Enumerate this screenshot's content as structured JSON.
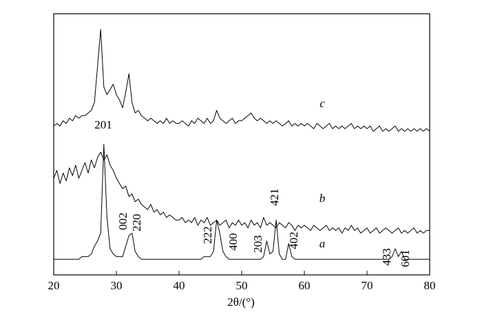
{
  "chart_data": {
    "type": "line",
    "xlabel": "2θ/(°)",
    "xlim": [
      20,
      80
    ],
    "xticks": [
      20,
      30,
      40,
      50,
      60,
      70,
      80
    ],
    "ylim": [
      0,
      100
    ],
    "color": "#000000",
    "x": [
      20,
      20.5,
      21,
      21.5,
      22,
      22.5,
      23,
      23.5,
      24,
      24.5,
      25,
      25.5,
      26,
      26.5,
      27,
      27.5,
      28,
      28.5,
      29,
      29.5,
      30,
      30.5,
      31,
      31.5,
      32,
      32.5,
      33,
      33.5,
      34,
      34.5,
      35,
      35.5,
      36,
      36.5,
      37,
      37.5,
      38,
      38.5,
      39,
      39.5,
      40,
      40.5,
      41,
      41.5,
      42,
      42.5,
      43,
      43.5,
      44,
      44.5,
      45,
      45.5,
      46,
      46.5,
      47,
      47.5,
      48,
      48.5,
      49,
      49.5,
      50,
      50.5,
      51,
      51.5,
      52,
      52.5,
      53,
      53.5,
      54,
      54.5,
      55,
      55.5,
      56,
      56.5,
      57,
      57.5,
      58,
      58.5,
      59,
      59.5,
      60,
      60.5,
      61,
      61.5,
      62,
      62.5,
      63,
      63.5,
      64,
      64.5,
      65,
      65.5,
      66,
      66.5,
      67,
      67.5,
      68,
      68.5,
      69,
      69.5,
      70,
      70.5,
      71,
      71.5,
      72,
      72.5,
      73,
      73.5,
      74,
      74.5,
      75,
      75.5,
      76,
      76.5,
      77,
      77.5,
      78,
      78.5,
      79,
      79.5,
      80
    ],
    "series": [
      {
        "name": "a",
        "values": [
          6,
          6,
          6,
          6,
          6,
          6,
          6,
          6,
          6,
          7,
          7,
          7,
          8,
          11,
          13,
          16,
          50,
          22,
          10,
          8,
          7,
          7,
          7,
          11,
          15,
          16,
          9,
          7,
          6,
          6,
          6,
          6,
          6,
          6,
          6,
          6,
          6,
          6,
          6,
          6,
          6,
          6,
          6,
          6,
          6,
          6,
          6,
          6,
          7,
          7,
          7,
          9,
          21,
          16,
          9,
          7,
          6,
          6,
          6,
          6,
          6,
          6,
          6,
          6,
          6,
          6,
          6,
          7,
          13,
          8,
          9,
          21,
          8,
          6,
          6,
          12,
          7,
          6,
          6,
          6,
          6,
          6,
          6,
          6,
          6,
          6,
          6,
          6,
          6,
          6,
          6,
          6,
          6,
          6,
          6,
          6,
          6,
          6,
          6,
          6,
          6,
          6,
          6,
          6,
          6,
          6,
          6,
          6,
          7,
          10,
          7,
          9,
          6,
          6,
          6,
          6,
          6,
          6,
          6,
          6,
          6
        ]
      },
      {
        "name": "b",
        "values": [
          37,
          40,
          35,
          39,
          36,
          41,
          38,
          42,
          37,
          40,
          43,
          39,
          44,
          41,
          45,
          47,
          44,
          46,
          42,
          40,
          37,
          35,
          33,
          34,
          30,
          31,
          28,
          29,
          27,
          26,
          25,
          27,
          24,
          25,
          23,
          24,
          22,
          23,
          22,
          21,
          21,
          22,
          20,
          21,
          20,
          22,
          19,
          21,
          20,
          22,
          19,
          20,
          21,
          19,
          20,
          21,
          18,
          20,
          19,
          21,
          19,
          20,
          18,
          21,
          19,
          20,
          18,
          22,
          19,
          20,
          19,
          18,
          20,
          19,
          18,
          20,
          19,
          17,
          19,
          18,
          19,
          18,
          17,
          19,
          18,
          17,
          18,
          19,
          17,
          18,
          17,
          18,
          16,
          18,
          17,
          19,
          17,
          18,
          16,
          17,
          18,
          16,
          17,
          18,
          16,
          17,
          18,
          17,
          16,
          17,
          18,
          16,
          17,
          16,
          17,
          18,
          16,
          17,
          16,
          17,
          17
        ]
      },
      {
        "name": "c",
        "values": [
          57,
          58,
          57,
          59,
          58,
          60,
          59,
          61,
          60,
          61,
          61,
          62,
          63,
          66,
          80,
          94,
          72,
          69,
          71,
          73,
          69,
          67,
          64,
          70,
          77,
          66,
          62,
          63,
          61,
          60,
          59,
          60,
          59,
          58,
          59,
          58,
          60,
          58,
          59,
          58,
          58,
          59,
          58,
          57,
          59,
          58,
          60,
          59,
          58,
          60,
          58,
          59,
          63,
          60,
          59,
          58,
          59,
          60,
          58,
          59,
          59,
          60,
          61,
          62,
          60,
          59,
          60,
          59,
          58,
          59,
          58,
          59,
          58,
          57,
          58,
          59,
          57,
          58,
          57,
          58,
          57,
          58,
          57,
          56,
          58,
          57,
          56,
          57,
          58,
          56,
          57,
          56,
          57,
          56,
          57,
          58,
          56,
          57,
          56,
          57,
          56,
          57,
          55,
          56,
          57,
          55,
          56,
          55,
          56,
          57,
          55,
          56,
          55,
          56,
          55,
          56,
          55,
          56,
          55,
          56,
          55
        ]
      }
    ],
    "annotations": [
      "201",
      "002",
      "220",
      "222",
      "400",
      "203",
      "421",
      "402",
      "433",
      "601"
    ]
  }
}
